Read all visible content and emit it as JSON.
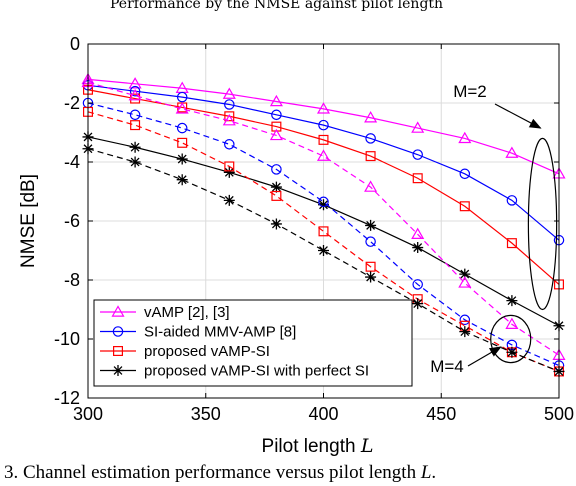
{
  "top_cut_text": "Performance by the NMSE against pilot length",
  "caption": "3.  Channel estimation performance versus pilot length L.",
  "chart_data": {
    "type": "line",
    "xlabel": "Pilot length L",
    "ylabel": "NMSE [dB]",
    "xlim": [
      300,
      500
    ],
    "ylim": [
      -12,
      0
    ],
    "xticks": [
      300,
      350,
      400,
      450,
      500
    ],
    "yticks": [
      0,
      -2,
      -4,
      -6,
      -8,
      -10,
      -12
    ],
    "grid": true,
    "legend_position": "bottom-left",
    "x": [
      300,
      320,
      340,
      360,
      380,
      400,
      420,
      440,
      460,
      480,
      500
    ],
    "series": [
      {
        "name": "vAMP [2], [3]",
        "M": 2,
        "dash": "solid",
        "color": "#ff00ff",
        "marker": "triangle",
        "values": [
          -1.2,
          -1.35,
          -1.5,
          -1.7,
          -1.95,
          -2.2,
          -2.5,
          -2.85,
          -3.2,
          -3.7,
          -4.4
        ]
      },
      {
        "name": "SI-aided MMV-AMP [8]",
        "M": 2,
        "dash": "solid",
        "color": "#0000ff",
        "marker": "circle",
        "values": [
          -1.4,
          -1.6,
          -1.8,
          -2.05,
          -2.4,
          -2.75,
          -3.2,
          -3.75,
          -4.4,
          -5.3,
          -6.65
        ]
      },
      {
        "name": "proposed vAMP-SI",
        "M": 2,
        "dash": "solid",
        "color": "#ff0000",
        "marker": "square",
        "values": [
          -1.55,
          -1.85,
          -2.15,
          -2.45,
          -2.8,
          -3.25,
          -3.8,
          -4.55,
          -5.5,
          -6.75,
          -8.15
        ]
      },
      {
        "name": "proposed vAMP-SI with perfect SI",
        "M": 2,
        "dash": "solid",
        "color": "#000000",
        "marker": "star",
        "values": [
          -3.15,
          -3.5,
          -3.9,
          -4.35,
          -4.85,
          -5.45,
          -6.15,
          -6.9,
          -7.8,
          -8.7,
          -9.55
        ]
      },
      {
        "name": "vAMP [2], [3]",
        "M": 4,
        "dash": "dashed",
        "color": "#ff00ff",
        "marker": "triangle",
        "values": [
          -1.3,
          -1.75,
          -2.2,
          -2.6,
          -3.1,
          -3.8,
          -4.85,
          -6.45,
          -8.1,
          -9.5,
          -10.55
        ]
      },
      {
        "name": "SI-aided MMV-AMP [8]",
        "M": 4,
        "dash": "dashed",
        "color": "#0000ff",
        "marker": "circle",
        "values": [
          -2.0,
          -2.4,
          -2.85,
          -3.4,
          -4.25,
          -5.35,
          -6.7,
          -8.15,
          -9.35,
          -10.2,
          -10.9
        ]
      },
      {
        "name": "proposed vAMP-SI",
        "M": 4,
        "dash": "dashed",
        "color": "#ff0000",
        "marker": "square",
        "values": [
          -2.3,
          -2.75,
          -3.35,
          -4.15,
          -5.15,
          -6.35,
          -7.55,
          -8.65,
          -9.55,
          -10.45,
          -11.1
        ]
      },
      {
        "name": "proposed vAMP-SI with perfect SI",
        "M": 4,
        "dash": "dashed",
        "color": "#000000",
        "marker": "star",
        "values": [
          -3.55,
          -4.0,
          -4.6,
          -5.3,
          -6.1,
          -7.0,
          -7.9,
          -8.8,
          -9.75,
          -10.45,
          -11.1
        ]
      }
    ],
    "legend": [
      {
        "label": "vAMP [2], [3]",
        "color": "#ff00ff",
        "marker": "triangle"
      },
      {
        "label": "SI-aided MMV-AMP [8]",
        "color": "#0000ff",
        "marker": "circle"
      },
      {
        "label": "proposed vAMP-SI",
        "color": "#ff0000",
        "marker": "square"
      },
      {
        "label": "proposed vAMP-SI with perfect SI",
        "color": "#000000",
        "marker": "star"
      }
    ],
    "annotations": [
      {
        "text": "M=2",
        "target_x": 493,
        "target_y": -6.0,
        "ellipse_x_span": [
          487,
          499
        ],
        "ellipse_y_span": [
          -3.2,
          -9.0
        ]
      },
      {
        "text": "M=4",
        "target_x": 480,
        "target_y": -10.2,
        "ellipse_x_span": [
          471,
          488
        ],
        "ellipse_y_span": [
          -9.2,
          -10.8
        ]
      }
    ]
  }
}
